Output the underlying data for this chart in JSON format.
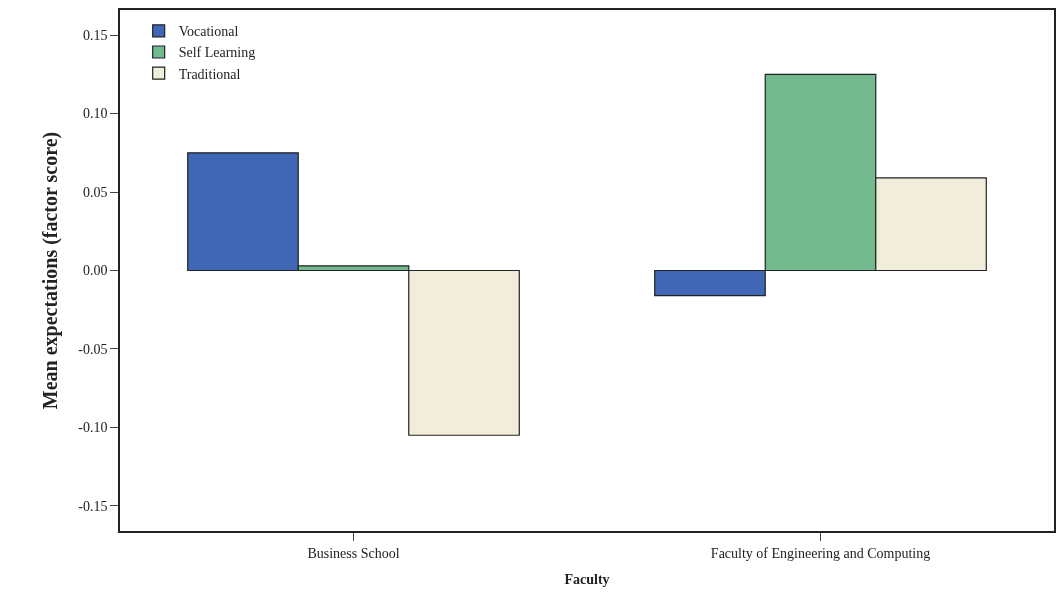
{
  "chart_data": {
    "type": "bar",
    "xlabel": "Faculty",
    "ylabel": "Mean expectations (factor score)",
    "categories": [
      "Business School",
      "Faculty of Engineering and Computing"
    ],
    "series": [
      {
        "name": "Vocational",
        "color": "#3f67b5",
        "values": [
          0.075,
          -0.016
        ]
      },
      {
        "name": "Self Learning",
        "color": "#72b98e",
        "values": [
          0.003,
          0.125
        ]
      },
      {
        "name": "Traditional",
        "color": "#f0eedb",
        "values": [
          -0.105,
          0.059
        ]
      }
    ],
    "ylim": [
      -0.166,
      0.166
    ],
    "yticks": [
      {
        "value": -0.15,
        "label": "-0.15"
      },
      {
        "value": -0.1,
        "label": "-0.10"
      },
      {
        "value": -0.05,
        "label": "-0.05"
      },
      {
        "value": 0,
        "label": "0.00"
      },
      {
        "value": 0.05,
        "label": "0.05"
      },
      {
        "value": 0.1,
        "label": "0.10"
      },
      {
        "value": 0.15,
        "label": "0.15"
      }
    ],
    "legend": "top left"
  }
}
